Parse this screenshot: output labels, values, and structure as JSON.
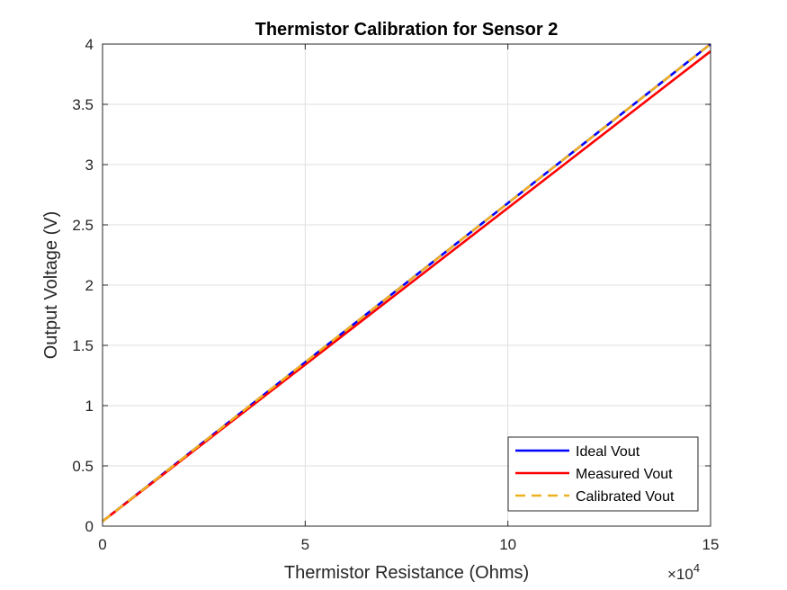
{
  "chart_data": {
    "type": "line",
    "title": "Thermistor Calibration for Sensor 2",
    "xlabel": "Thermistor Resistance (Ohms)",
    "ylabel": "Output Voltage (V)",
    "x_exponent_label": "×10",
    "x_exponent_power": "4",
    "xlim": [
      0,
      150000
    ],
    "ylim": [
      0,
      4
    ],
    "x_ticks": [
      0,
      50000,
      100000,
      150000
    ],
    "x_tick_labels": [
      "0",
      "5",
      "10",
      "15"
    ],
    "y_ticks": [
      0,
      0.5,
      1,
      1.5,
      2,
      2.5,
      3,
      3.5,
      4
    ],
    "y_tick_labels": [
      "0",
      "0.5",
      "1",
      "1.5",
      "2",
      "2.5",
      "3",
      "3.5",
      "4"
    ],
    "grid": true,
    "legend_position": "bottom-right",
    "x": [
      0,
      150000
    ],
    "series": [
      {
        "name": "Ideal Vout",
        "values": [
          0.04,
          4.0
        ],
        "color": "#0000ff",
        "style": "solid"
      },
      {
        "name": "Measured Vout",
        "values": [
          0.04,
          3.94
        ],
        "color": "#ff0000",
        "style": "solid"
      },
      {
        "name": "Calibrated Vout",
        "values": [
          0.04,
          4.0
        ],
        "color": "#edb120",
        "style": "dashed"
      }
    ]
  }
}
